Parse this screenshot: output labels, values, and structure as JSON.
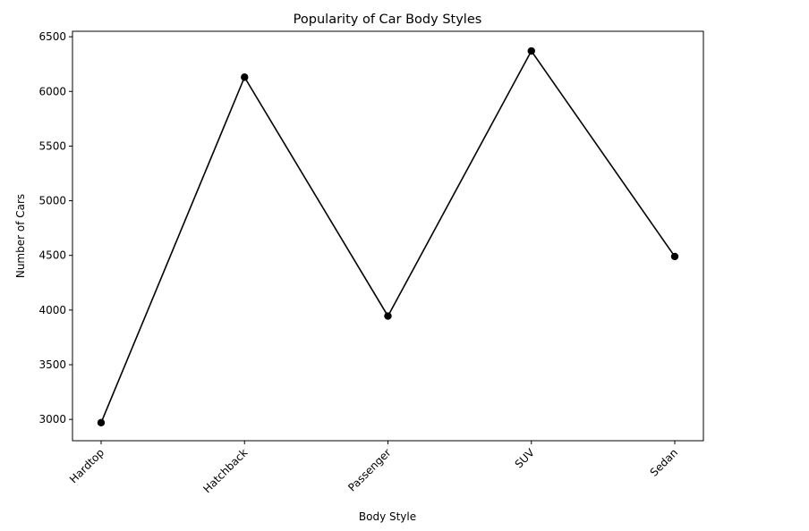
{
  "chart_data": {
    "type": "line",
    "title": "Popularity of Car Body Styles",
    "xlabel": "Body Style",
    "ylabel": "Number of Cars",
    "categories": [
      "Hardtop",
      "Hatchback",
      "Passenger",
      "SUV",
      "Sedan"
    ],
    "series": [
      {
        "values": [
          2970,
          6130,
          3945,
          6370,
          4490
        ]
      }
    ],
    "yticks": [
      "3000",
      "3500",
      "4000",
      "4500",
      "5000",
      "5500",
      "6000",
      "6500"
    ],
    "ytick_values": [
      3000,
      3500,
      4000,
      4500,
      5000,
      5500,
      6000,
      6500
    ],
    "ylim": [
      2805,
      6550
    ],
    "grid": false,
    "line_color": "#000000",
    "marker": "circle"
  }
}
